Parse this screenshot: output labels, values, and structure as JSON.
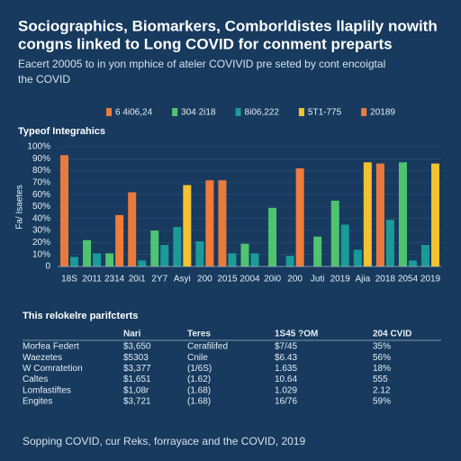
{
  "title": [
    "Sociographics, Biomarkers, Comborldistes llaplily nowith",
    "congns linked to Long COVID  for conment preparts"
  ],
  "subtitle": [
    "Eacert 20005 to in yon mphice of ateler COVIVID pre seted by cont encoigtal",
    "the COVID"
  ],
  "chart_data": {
    "type": "bar",
    "title": "Typeof Integrahics",
    "y_label": "Fa/ Isaetes",
    "categories": [
      "18S",
      "2011",
      "2314",
      "20i1",
      "2Y7",
      "Asyi",
      "200",
      "2015",
      "2004",
      "20i0",
      "200",
      "Juti",
      "2019",
      "Ajia",
      "2018",
      "2054",
      "2019"
    ],
    "series": [
      {
        "name": "6 4i06,24",
        "color": "#ea7a3c",
        "values": [
          93,
          null,
          null,
          62,
          null,
          null,
          null,
          72,
          null,
          null,
          null,
          null,
          null,
          null,
          86,
          null,
          null
        ]
      },
      {
        "name": "304 2i18",
        "color": "#4fc46f",
        "values": [
          null,
          22,
          11,
          null,
          30,
          null,
          null,
          null,
          19,
          49,
          null,
          25,
          55,
          null,
          null,
          87,
          null
        ]
      },
      {
        "name": "8i06,222",
        "color": "#1a9b98",
        "values": [
          8,
          11,
          null,
          5,
          18,
          33,
          21,
          11,
          11,
          null,
          9,
          null,
          35,
          14,
          39,
          5,
          18
        ]
      },
      {
        "name": "5T1-775",
        "color": "#f3c22f",
        "values": [
          null,
          null,
          null,
          null,
          null,
          68,
          null,
          null,
          null,
          null,
          null,
          null,
          null,
          87,
          null,
          null,
          86
        ]
      },
      {
        "name": "20189",
        "color": "#f07b3b",
        "values": [
          null,
          null,
          43,
          null,
          null,
          null,
          72,
          null,
          null,
          null,
          82,
          null,
          null,
          null,
          null,
          null,
          null
        ]
      }
    ],
    "ylim": [
      0,
      100
    ],
    "yticks": [
      0,
      {
        "value": 10,
        "label": "10%"
      },
      {
        "value": 20,
        "label": "20%"
      },
      {
        "value": 30,
        "label": "30%"
      },
      {
        "value": 40,
        "label": "40%"
      },
      {
        "value": 50,
        "label": "50%"
      },
      {
        "value": 60,
        "label": "60%"
      },
      {
        "value": 70,
        "label": "70%"
      },
      {
        "value": 80,
        "label": "80%"
      },
      {
        "value": 90,
        "label": "90%"
      },
      {
        "value": 100,
        "label": "100%"
      }
    ],
    "grid": true
  },
  "table": {
    "title": "This relokelre parifcterts",
    "header": [
      "",
      "Nari",
      "Teres",
      "1S45 ?OM",
      "204 CVID"
    ],
    "rows": [
      [
        "Morfea Federt",
        "$3,650",
        "Cerafilifed",
        "$7/45",
        "35%"
      ],
      [
        "Waezetes",
        "$5303",
        "Cnile",
        "$6.43",
        "56%"
      ],
      [
        "W Comratetion",
        "$3,377",
        "(1/6S)",
        "1.635",
        "18%"
      ],
      [
        "Caltes",
        "$1,651",
        "(1.62)",
        "10.64",
        "555"
      ],
      [
        "Lomfastiftes",
        "$1,08r",
        "(1.68)",
        "1.029",
        "2.12"
      ],
      [
        "Engites",
        "$3,721",
        "(1.68)",
        "16/76",
        "59%"
      ]
    ]
  },
  "footer": "Sopping COVID, cur Reks, forrayace and the COVID, 2019"
}
